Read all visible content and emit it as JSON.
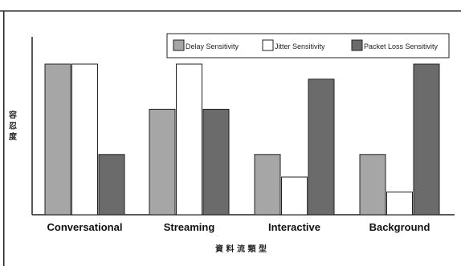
{
  "chart_data": {
    "type": "bar",
    "categories": [
      "Conversational",
      "Streaming",
      "Interactive",
      "Background"
    ],
    "series": [
      {
        "name": "Delay Sensitivity",
        "color": "#a6a6a6",
        "values": [
          10,
          7,
          4,
          4
        ]
      },
      {
        "name": "Jitter Sensitivity",
        "color": "#ffffff",
        "values": [
          10,
          10,
          2.5,
          1.5
        ]
      },
      {
        "name": "Packet Loss Sensitivity",
        "color": "#6b6b6b",
        "values": [
          4,
          7,
          9,
          10
        ]
      }
    ],
    "xlabel": "資 料 流 類 型",
    "ylabel": "容 忍 度",
    "ylim": [
      0,
      10
    ],
    "grid": false,
    "legend": "top-right"
  }
}
